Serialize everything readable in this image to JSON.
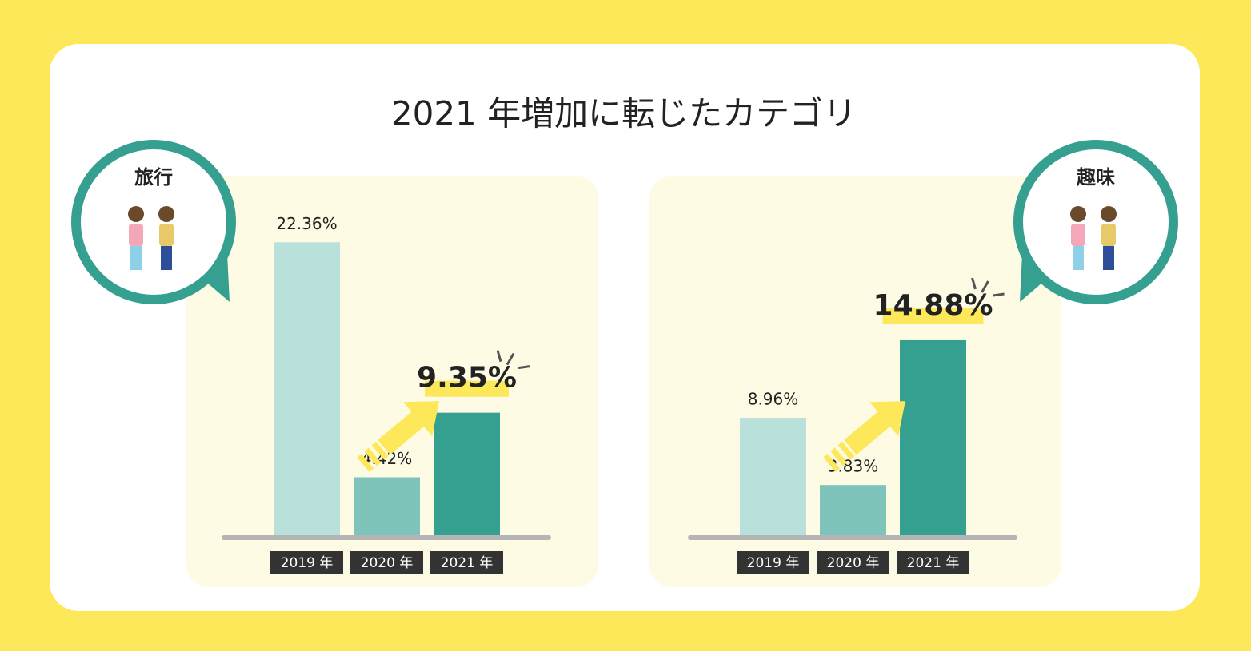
{
  "title": "2021 年増加に転じたカテゴリ",
  "chart_data": [
    {
      "type": "bar",
      "title": "旅行",
      "categories": [
        "2019 年",
        "2020 年",
        "2021 年"
      ],
      "values": [
        22.36,
        4.42,
        9.35
      ],
      "value_labels": [
        "22.36%",
        "4.42%",
        "9.35%"
      ],
      "colors": [
        "#b9e0da",
        "#7fc4bb",
        "#36a090"
      ]
    },
    {
      "type": "bar",
      "title": "趣味",
      "categories": [
        "2019 年",
        "2020 年",
        "2021 年"
      ],
      "values": [
        8.96,
        3.83,
        14.88
      ],
      "value_labels": [
        "8.96%",
        "3.83%",
        "14.88%"
      ],
      "colors": [
        "#b9e0da",
        "#7fc4bb",
        "#36a090"
      ]
    }
  ]
}
